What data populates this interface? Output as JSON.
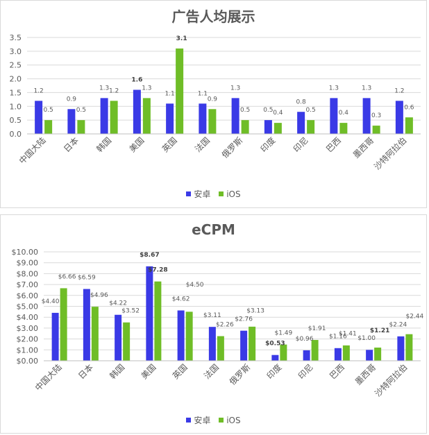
{
  "colors": {
    "android": "#3a3ae6",
    "ios": "#6fbd27",
    "text": "#595959",
    "grid": "#d9d9d9"
  },
  "legend": {
    "android_label": "安卓",
    "ios_label": "iOS"
  },
  "chart_data": [
    {
      "type": "bar",
      "title": "广告人均展示",
      "categories": [
        "中国大陆",
        "日本",
        "韩国",
        "美国",
        "英国",
        "法国",
        "俄罗斯",
        "印度",
        "印尼",
        "巴西",
        "墨西哥",
        "沙特阿拉伯"
      ],
      "series": [
        {
          "name": "安卓",
          "values": [
            1.2,
            0.9,
            1.3,
            1.6,
            1.1,
            1.1,
            1.3,
            0.5,
            0.8,
            1.3,
            1.3,
            1.2
          ],
          "labels": [
            "1.2",
            "0.9",
            "1.3",
            "1.6",
            "1.1",
            "1.1",
            "1.3",
            "0.5",
            "0.8",
            "1.3",
            "1.3",
            "1.2"
          ]
        },
        {
          "name": "iOS",
          "values": [
            0.5,
            0.5,
            1.2,
            1.3,
            3.1,
            0.9,
            0.5,
            0.4,
            0.5,
            0.4,
            0.3,
            0.6
          ],
          "labels": [
            "0.5",
            "0.5",
            "1.2",
            "1.3",
            "3.1",
            "0.9",
            "0.5",
            "0.4",
            "0.5",
            "0.4",
            "0.3",
            "0.6"
          ]
        }
      ],
      "bold_labels": [
        [
          3,
          0
        ],
        [
          4,
          1
        ]
      ],
      "yticks": [
        "0.0",
        "0.5",
        "1.0",
        "1.5",
        "2.0",
        "2.5",
        "3.0",
        "3.5"
      ],
      "ylim": [
        0,
        3.5
      ],
      "xlabel": "",
      "ylabel": "",
      "grid": true,
      "legend": "bottom"
    },
    {
      "type": "bar",
      "title": "eCPM",
      "categories": [
        "中国大陆",
        "日本",
        "韩国",
        "美国",
        "英国",
        "法国",
        "俄罗斯",
        "印度",
        "印尼",
        "巴西",
        "墨西哥",
        "沙特阿拉伯"
      ],
      "series": [
        {
          "name": "安卓",
          "values": [
            4.4,
            6.59,
            4.22,
            8.67,
            4.62,
            3.11,
            2.76,
            0.53,
            0.96,
            1.16,
            1.0,
            2.24
          ],
          "labels": [
            "$4.40",
            "$6.59",
            "$4.22",
            "$8.67",
            "$4.62",
            "$3.11",
            "$2.76",
            "$0.53",
            "$0.96",
            "$1.16",
            "$1.00",
            "$2.24"
          ]
        },
        {
          "name": "iOS",
          "values": [
            6.66,
            4.96,
            3.52,
            7.28,
            4.5,
            2.26,
            3.13,
            1.49,
            1.91,
            1.41,
            1.21,
            2.44
          ],
          "labels": [
            "$6.66",
            "$4.96",
            "$3.52",
            "$7.28",
            "$4.50",
            "$2.26",
            "$3.13",
            "$1.49",
            "$1.91",
            "$1.41",
            "$1.21",
            "$2.44"
          ]
        }
      ],
      "bold_labels": [
        [
          3,
          0
        ],
        [
          3,
          1
        ],
        [
          7,
          0
        ],
        [
          10,
          1
        ]
      ],
      "yticks": [
        "$0.00",
        "$1.00",
        "$2.00",
        "$3.00",
        "$4.00",
        "$5.00",
        "$6.00",
        "$7.00",
        "$8.00",
        "$9.00",
        "$10.00"
      ],
      "ylim": [
        0,
        10
      ],
      "xlabel": "",
      "ylabel": "",
      "grid": true,
      "legend": "bottom"
    }
  ]
}
